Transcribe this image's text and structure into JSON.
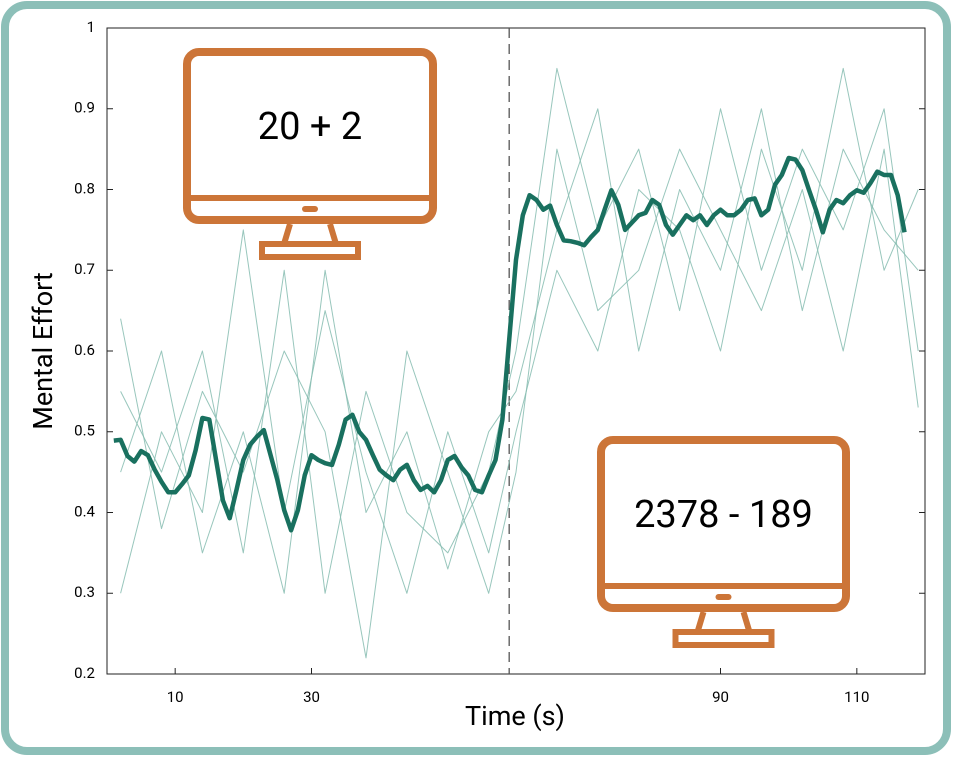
{
  "chart_data": {
    "type": "line",
    "xlabel": "Time (s)",
    "ylabel": "Mental Effort",
    "xlim": [
      0,
      120
    ],
    "ylim": [
      0.2,
      1
    ],
    "xticks": [
      10,
      30,
      90,
      110
    ],
    "yticks": [
      0.2,
      0.3,
      0.4,
      0.5,
      0.6,
      0.7,
      0.8,
      0.9,
      1
    ],
    "vline": 59,
    "annotations": [
      "20 + 2",
      "2378 - 189"
    ],
    "series": [
      {
        "color": "#86bcb0",
        "x": [
          2,
          8,
          14,
          20,
          26,
          32,
          38,
          44,
          50,
          56,
          60,
          66,
          72,
          78,
          84,
          90,
          96,
          102,
          108,
          114,
          119
        ],
        "values": [
          0.55,
          0.45,
          0.6,
          0.35,
          0.7,
          0.3,
          0.55,
          0.4,
          0.35,
          0.45,
          0.6,
          0.95,
          0.75,
          0.85,
          0.65,
          0.9,
          0.7,
          0.85,
          0.75,
          0.9,
          0.6
        ]
      },
      {
        "color": "#86bcb0",
        "x": [
          2,
          8,
          14,
          20,
          26,
          32,
          38,
          44,
          50,
          56,
          60,
          66,
          72,
          78,
          84,
          90,
          96,
          102,
          108,
          114,
          119
        ],
        "values": [
          0.3,
          0.5,
          0.4,
          0.75,
          0.4,
          0.65,
          0.45,
          0.3,
          0.5,
          0.35,
          0.5,
          0.7,
          0.6,
          0.8,
          0.75,
          0.6,
          0.85,
          0.7,
          0.95,
          0.7,
          0.8
        ]
      },
      {
        "color": "#86bcb0",
        "x": [
          2,
          8,
          14,
          20,
          26,
          32,
          38,
          44,
          50,
          56,
          60,
          66,
          72,
          78,
          84,
          90,
          96,
          102,
          108,
          114,
          119
        ],
        "values": [
          0.64,
          0.38,
          0.55,
          0.45,
          0.6,
          0.5,
          0.22,
          0.6,
          0.45,
          0.3,
          0.45,
          0.85,
          0.65,
          0.7,
          0.85,
          0.75,
          0.65,
          0.8,
          0.6,
          0.85,
          0.53
        ]
      },
      {
        "color": "#86bcb0",
        "x": [
          2,
          8,
          14,
          20,
          26,
          32,
          38,
          44,
          50,
          56,
          60,
          66,
          72,
          78,
          84,
          90,
          96,
          102,
          108,
          114,
          119
        ],
        "values": [
          0.45,
          0.6,
          0.35,
          0.5,
          0.3,
          0.7,
          0.4,
          0.5,
          0.33,
          0.5,
          0.55,
          0.75,
          0.9,
          0.6,
          0.8,
          0.7,
          0.9,
          0.65,
          0.85,
          0.75,
          0.7
        ]
      },
      {
        "color": "#19705f",
        "x": [
          1,
          2,
          3,
          4,
          5,
          6,
          7,
          8,
          9,
          10,
          11,
          12,
          13,
          14,
          15,
          16,
          17,
          18,
          19,
          20,
          21,
          22,
          23,
          24,
          25,
          26,
          27,
          28,
          29,
          30,
          31,
          32,
          33,
          34,
          35,
          36,
          37,
          38,
          39,
          40,
          41,
          42,
          43,
          44,
          45,
          46,
          47,
          48,
          49,
          50,
          51,
          52,
          53,
          54,
          55,
          56,
          57,
          58,
          59,
          60,
          61,
          62,
          63,
          64,
          65,
          66,
          67,
          68,
          69,
          70,
          71,
          72,
          73,
          74,
          75,
          76,
          77,
          78,
          79,
          80,
          81,
          82,
          83,
          84,
          85,
          86,
          87,
          88,
          89,
          90,
          91,
          92,
          93,
          94,
          95,
          96,
          97,
          98,
          99,
          100,
          101,
          102,
          103,
          104,
          105,
          106,
          107,
          108,
          109,
          110,
          111,
          112,
          113,
          114,
          115,
          116,
          117
        ],
        "values": [
          0.489,
          0.49,
          0.47,
          0.463,
          0.476,
          0.471,
          0.453,
          0.438,
          0.425,
          0.425,
          0.435,
          0.446,
          0.477,
          0.517,
          0.515,
          0.465,
          0.415,
          0.393,
          0.428,
          0.465,
          0.484,
          0.494,
          0.502,
          0.471,
          0.44,
          0.403,
          0.378,
          0.403,
          0.446,
          0.471,
          0.465,
          0.461,
          0.459,
          0.484,
          0.515,
          0.521,
          0.5,
          0.49,
          0.471,
          0.453,
          0.446,
          0.44,
          0.453,
          0.459,
          0.44,
          0.428,
          0.433,
          0.425,
          0.44,
          0.465,
          0.47,
          0.456,
          0.446,
          0.428,
          0.425,
          0.446,
          0.465,
          0.515,
          0.614,
          0.713,
          0.768,
          0.793,
          0.787,
          0.775,
          0.78,
          0.756,
          0.737,
          0.736,
          0.734,
          0.731,
          0.741,
          0.75,
          0.775,
          0.799,
          0.781,
          0.75,
          0.759,
          0.768,
          0.771,
          0.787,
          0.781,
          0.756,
          0.744,
          0.756,
          0.768,
          0.762,
          0.768,
          0.756,
          0.768,
          0.775,
          0.768,
          0.768,
          0.775,
          0.787,
          0.789,
          0.768,
          0.775,
          0.806,
          0.818,
          0.839,
          0.837,
          0.824,
          0.799,
          0.775,
          0.747,
          0.775,
          0.787,
          0.783,
          0.793,
          0.799,
          0.796,
          0.808,
          0.822,
          0.818,
          0.818,
          0.793,
          0.747
        ]
      }
    ]
  }
}
